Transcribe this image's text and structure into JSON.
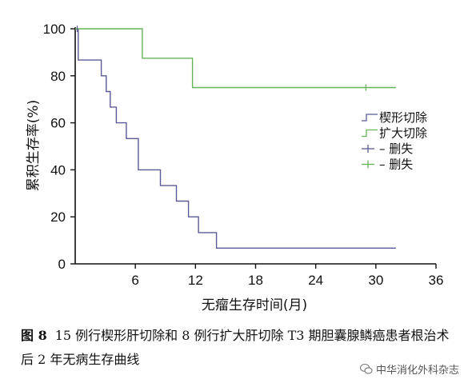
{
  "chart_data": {
    "type": "line",
    "xlabel": "无瘤生存时间(月)",
    "ylabel": "累积生存率(%)",
    "xlim": [
      0,
      36
    ],
    "ylim": [
      0,
      100
    ],
    "x_ticks": [
      6,
      12,
      18,
      24,
      30,
      36
    ],
    "y_ticks": [
      0,
      20,
      40,
      60,
      80,
      100
    ],
    "grid": false,
    "legend_position": "right",
    "series": [
      {
        "name": "楔形切除",
        "color": "#5a5a96",
        "x": [
          0,
          0.3,
          0.3,
          2.6,
          2.6,
          3.1,
          3.1,
          3.5,
          3.5,
          4.1,
          4.1,
          5.1,
          5.1,
          6.3,
          6.3,
          8.5,
          8.5,
          10.1,
          10.1,
          11.3,
          11.3,
          12.3,
          12.3,
          14.1,
          14.1,
          32
        ],
        "y": [
          100,
          100,
          86.7,
          86.7,
          80,
          80,
          73.3,
          73.3,
          66.7,
          66.7,
          60,
          60,
          53.3,
          53.3,
          40,
          40,
          33.3,
          33.3,
          26.7,
          26.7,
          20,
          20,
          13.3,
          13.3,
          6.7,
          6.7
        ]
      },
      {
        "name": "扩大切除",
        "color": "#66b35a",
        "x": [
          0,
          6.7,
          6.7,
          11.7,
          11.7,
          32
        ],
        "y": [
          100,
          100,
          87.5,
          87.5,
          75,
          75
        ]
      }
    ],
    "censored": [
      {
        "series": 0,
        "x": [
          0.2
        ],
        "y": [
          100
        ]
      },
      {
        "series": 1,
        "x": [
          29.0
        ],
        "y": [
          75
        ]
      }
    ],
    "legend": [
      {
        "label": "楔形切除",
        "kind": "step",
        "color": "#5a5a96"
      },
      {
        "label": "扩大切除",
        "kind": "step",
        "color": "#66b35a"
      },
      {
        "label": "– 删失",
        "kind": "censor",
        "color": "#5a5a96"
      },
      {
        "label": "– 删失",
        "kind": "censor",
        "color": "#66b35a"
      }
    ]
  },
  "caption": {
    "label": "图 8",
    "text": "15 例行楔形肝切除和 8 例行扩大肝切除 T3 期胆囊腺鳞癌患者根治术后 2 年无病生存曲线"
  },
  "watermark": {
    "text": "中华消化外科杂志",
    "icon": "wechat-icon"
  }
}
